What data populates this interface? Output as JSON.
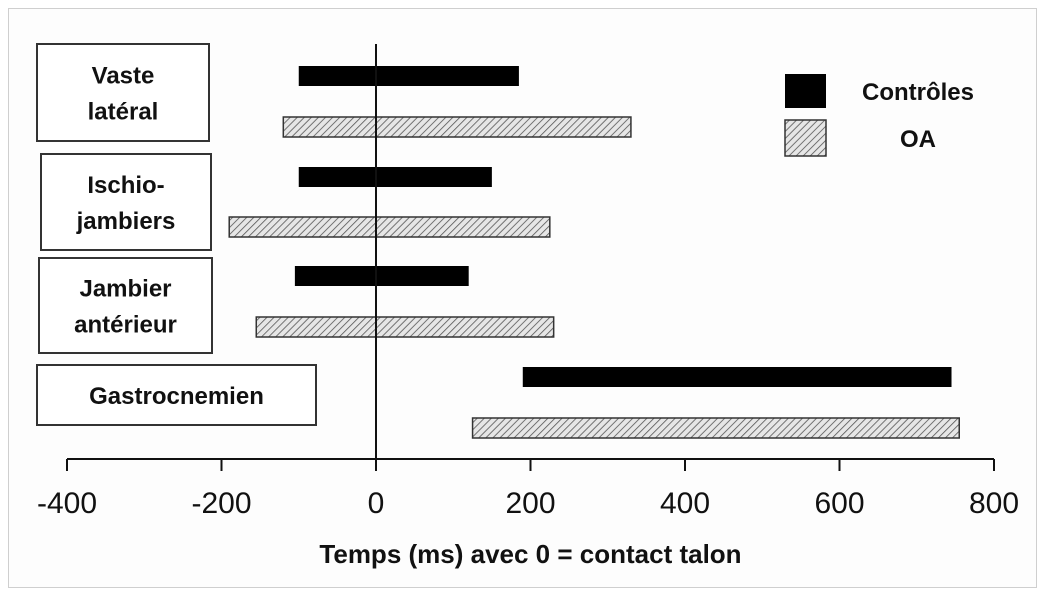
{
  "chart_data": {
    "type": "bar",
    "orientation": "horizontal-range",
    "xlabel": "Temps (ms) avec 0 = contact talon",
    "xlim": [
      -400,
      800
    ],
    "xticks": [
      -400,
      -200,
      0,
      200,
      400,
      600,
      800
    ],
    "xtick_labels": [
      "-400",
      "-200",
      "0",
      "200",
      "400",
      "600",
      "800"
    ],
    "legend": {
      "placement": "top-right",
      "entries": [
        {
          "name": "Contrôles",
          "style": "solid",
          "color": "#000000"
        },
        {
          "name": "OA",
          "style": "hatched",
          "color": "#bdbdbd"
        }
      ]
    },
    "categories": [
      {
        "lines": [
          "Vaste",
          "latéral"
        ]
      },
      {
        "lines": [
          "Ischio-",
          "jambiers"
        ]
      },
      {
        "lines": [
          "Jambier",
          "antérieur"
        ]
      },
      {
        "lines": [
          "Gastrocnemien"
        ]
      }
    ],
    "series": [
      {
        "name": "Contrôles",
        "ranges": [
          [
            -100,
            185
          ],
          [
            -100,
            150
          ],
          [
            -105,
            120
          ],
          [
            190,
            745
          ]
        ]
      },
      {
        "name": "OA",
        "ranges": [
          [
            -120,
            330
          ],
          [
            -190,
            225
          ],
          [
            -155,
            230
          ],
          [
            125,
            755
          ]
        ]
      }
    ]
  }
}
